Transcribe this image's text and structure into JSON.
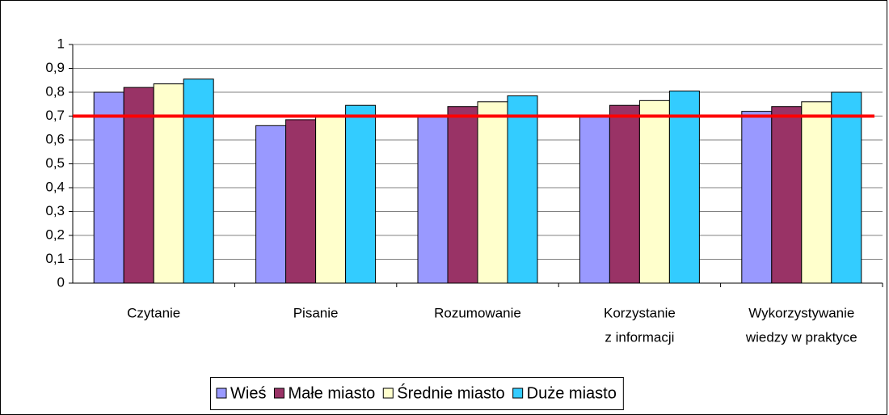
{
  "chart_data": {
    "type": "bar",
    "categories": [
      [
        "Czytanie"
      ],
      [
        "Pisanie"
      ],
      [
        "Rozumowanie"
      ],
      [
        "Korzystanie",
        "z informacji"
      ],
      [
        "Wykorzystywanie",
        "wiedzy w praktyce"
      ]
    ],
    "series": [
      {
        "name": "Wieś",
        "color": "#9999ff",
        "values": [
          0.8,
          0.66,
          0.7,
          0.7,
          0.72
        ]
      },
      {
        "name": "Małe miasto",
        "color": "#993366",
        "values": [
          0.82,
          0.685,
          0.74,
          0.745,
          0.74
        ]
      },
      {
        "name": "Średnie miasto",
        "color": "#ffffcc",
        "values": [
          0.835,
          0.7,
          0.76,
          0.765,
          0.76
        ]
      },
      {
        "name": "Duże miasto",
        "color": "#33ccff",
        "values": [
          0.855,
          0.745,
          0.785,
          0.805,
          0.8
        ]
      }
    ],
    "reference_line": {
      "value": 0.7,
      "color": "#ff0000"
    },
    "ylim": [
      0,
      1
    ],
    "yticks": [
      0,
      {
        "value": 0.1,
        "label": "0,1"
      },
      {
        "value": 0.2,
        "label": "0,2"
      },
      {
        "value": 0.3,
        "label": "0,3"
      },
      {
        "value": 0.4,
        "label": "0,4"
      },
      {
        "value": 0.5,
        "label": "0,5"
      },
      {
        "value": 0.6,
        "label": "0,6"
      },
      {
        "value": 0.7,
        "label": "0,7"
      },
      {
        "value": 0.8,
        "label": "0,8"
      },
      {
        "value": 0.9,
        "label": "0,9"
      },
      1
    ],
    "grid": true,
    "legend": "bottom"
  }
}
